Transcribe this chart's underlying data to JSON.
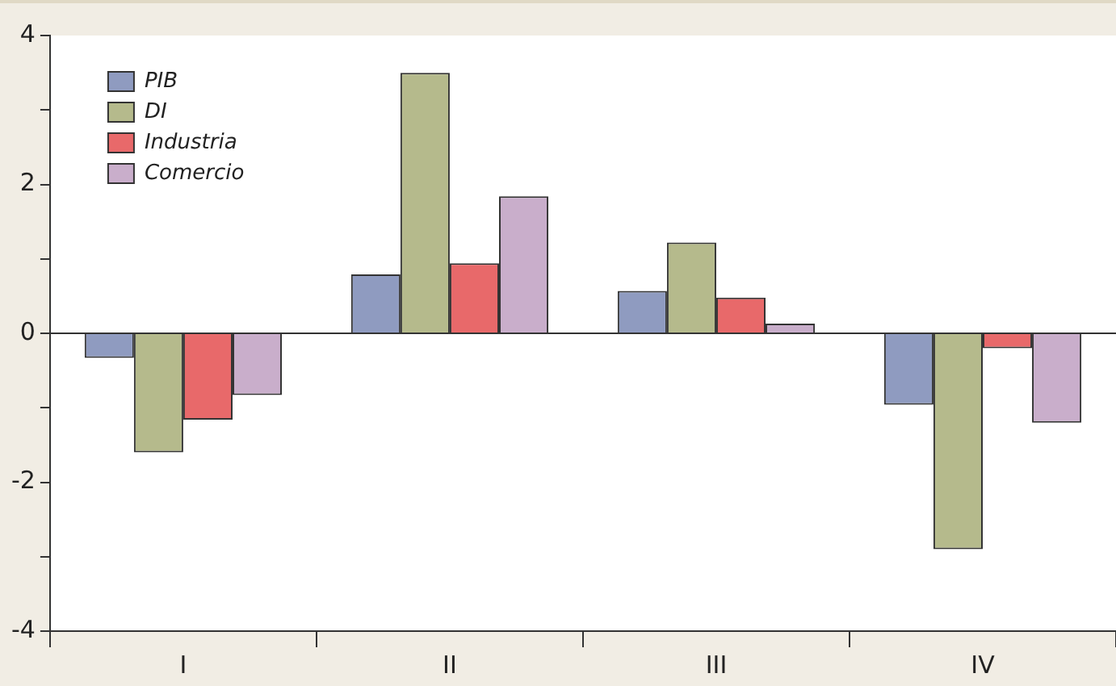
{
  "chart_data": {
    "type": "bar",
    "categories": [
      "I",
      "II",
      "III",
      "IV"
    ],
    "series": [
      {
        "name": "PIB",
        "color": "#8f9bc0",
        "values": [
          -0.33,
          0.79,
          0.57,
          -0.96
        ]
      },
      {
        "name": "DI",
        "color": "#b5ba8c",
        "values": [
          -1.6,
          3.5,
          1.22,
          -2.9
        ]
      },
      {
        "name": "Industria",
        "color": "#e8696a",
        "values": [
          -1.16,
          0.94,
          0.48,
          -0.2
        ]
      },
      {
        "name": "Comercio",
        "color": "#c9aecb",
        "values": [
          -0.83,
          1.84,
          0.13,
          -1.2
        ]
      }
    ],
    "ylim": [
      -4,
      4
    ],
    "yticks": [
      -4,
      {
        "value": -3,
        "label": null
      },
      -2,
      {
        "value": -1,
        "label": null
      },
      0,
      {
        "value": 1,
        "label": null
      },
      2,
      {
        "value": 3,
        "label": null
      },
      4
    ],
    "legend": "top left"
  }
}
